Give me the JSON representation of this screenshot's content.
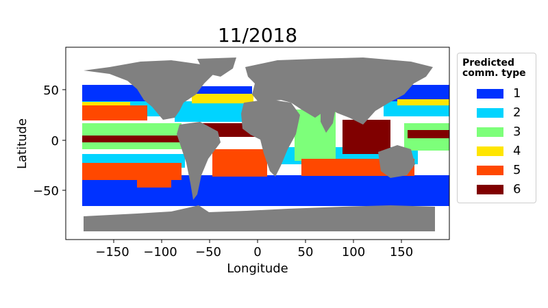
{
  "title": "11/2018",
  "map": {
    "xlabel": "Longitude",
    "ylabel": "Latitude",
    "xlim": [
      -198,
      198
    ],
    "ylim": [
      -95,
      92
    ],
    "xticks": [
      -150,
      -100,
      -50,
      0,
      50,
      100,
      150
    ],
    "xtick_labels": [
      "−150",
      "−100",
      "−50",
      "0",
      "50",
      "100",
      "150"
    ],
    "yticks": [
      50,
      0,
      -50
    ],
    "ytick_labels": [
      "50",
      "0",
      "−50"
    ],
    "land_color": "#808080",
    "ocean_color": "#ffffff"
  },
  "legend": {
    "title_line1": "Predicted",
    "title_line2": "comm. type",
    "items": [
      {
        "label": "1",
        "color": "#0032ff"
      },
      {
        "label": "2",
        "color": "#00d4ff"
      },
      {
        "label": "3",
        "color": "#7dff7a"
      },
      {
        "label": "4",
        "color": "#ffe500"
      },
      {
        "label": "5",
        "color": "#ff4800"
      },
      {
        "label": "6",
        "color": "#800000"
      }
    ]
  }
}
